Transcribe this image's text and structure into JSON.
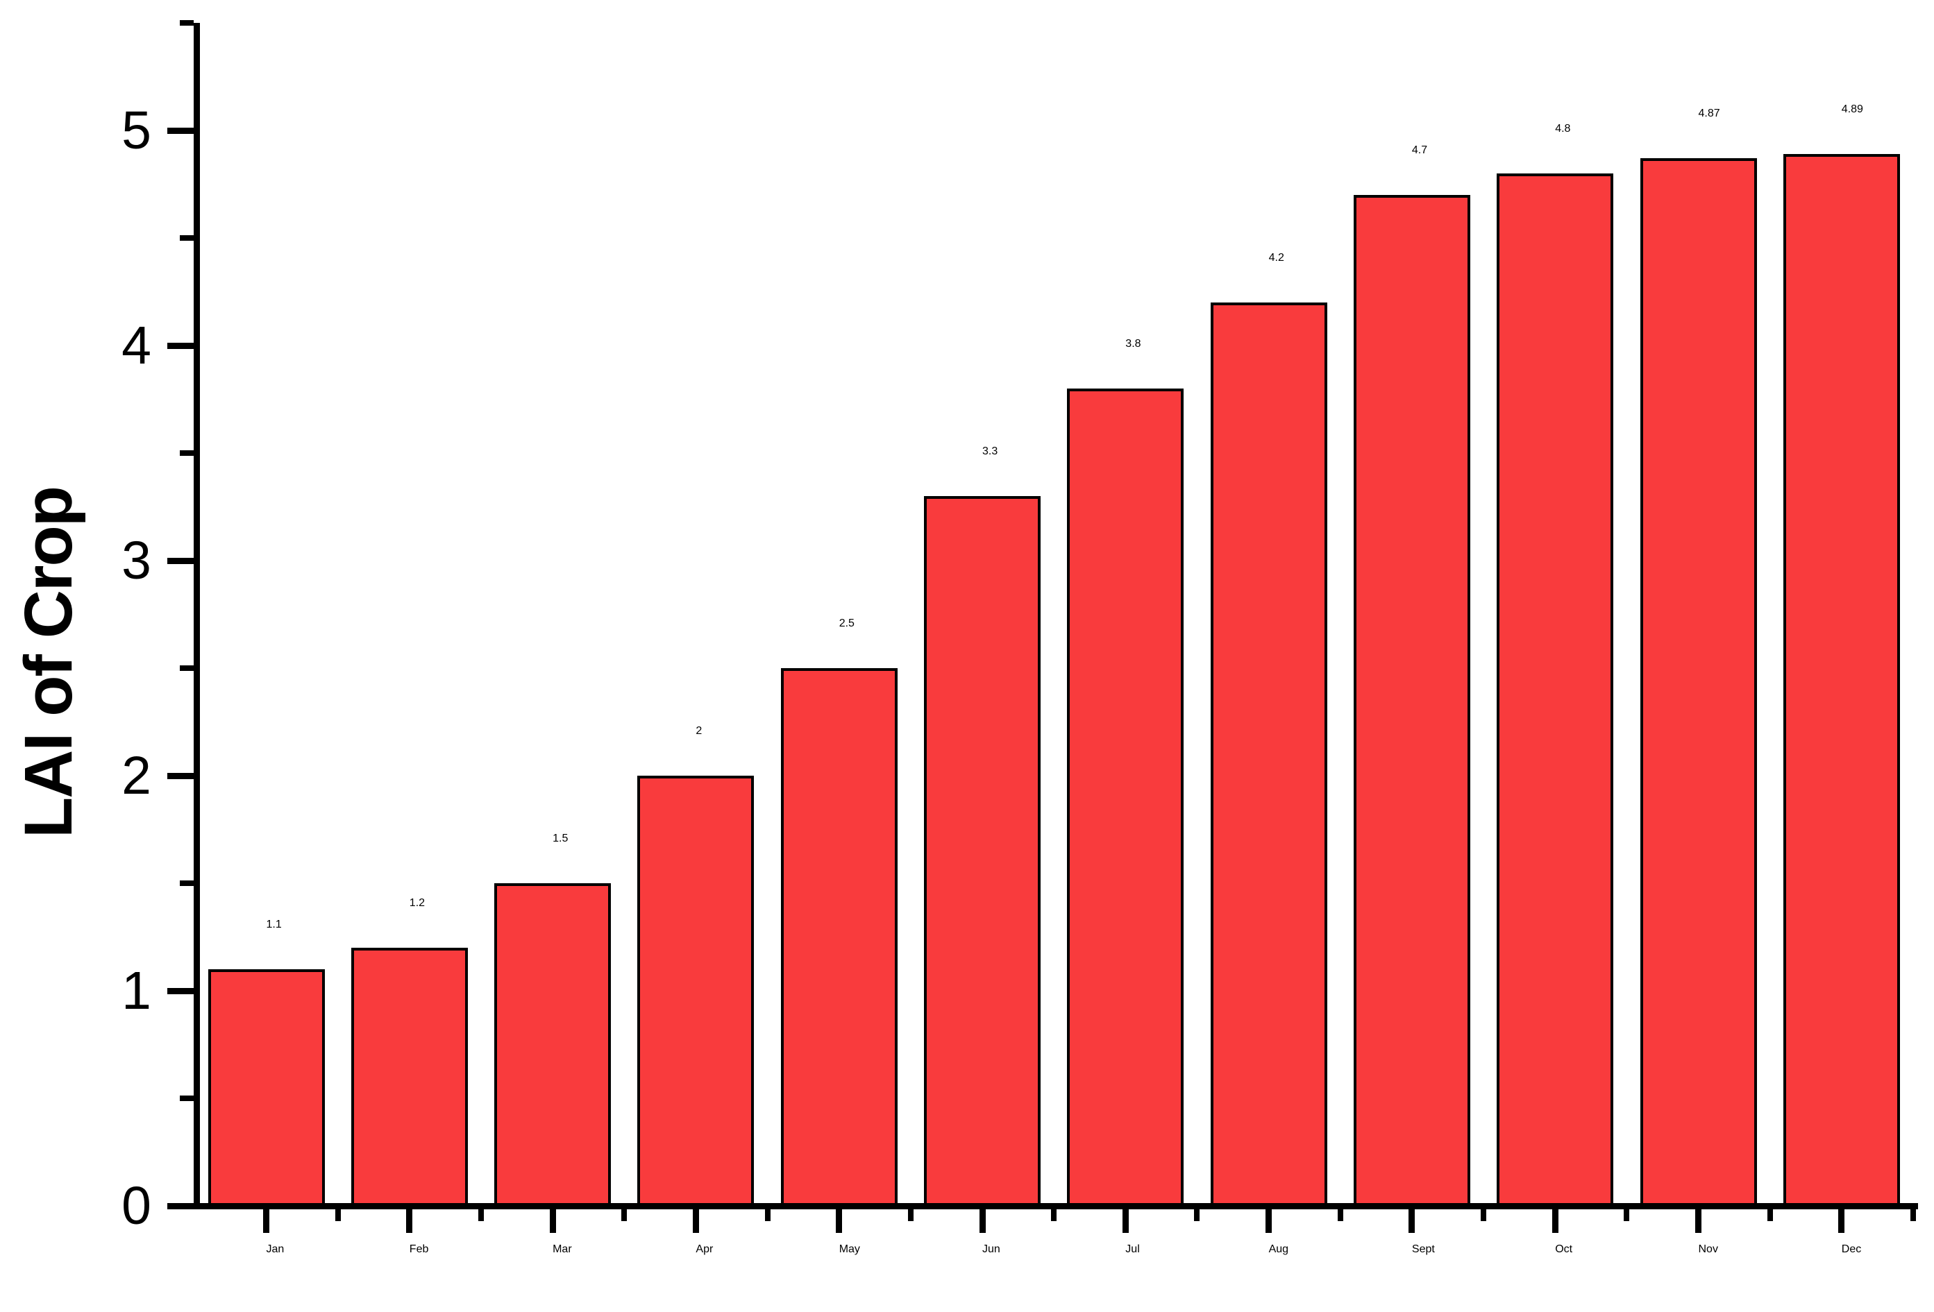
{
  "chart_data": {
    "type": "bar",
    "title": "",
    "xlabel": "",
    "ylabel": "LAI of Crop",
    "categories": [
      "Jan",
      "Feb",
      "Mar",
      "Apr",
      "May",
      "Jun",
      "Jul",
      "Aug",
      "Sept",
      "Oct",
      "Nov",
      "Dec"
    ],
    "values": [
      1.1,
      1.2,
      1.5,
      2,
      2.5,
      3.3,
      3.8,
      4.2,
      4.7,
      4.8,
      4.87,
      4.89
    ],
    "value_labels": [
      "1.1",
      "1.2",
      "1.5",
      "2",
      "2.5",
      "3.3",
      "3.8",
      "4.2",
      "4.7",
      "4.8",
      "4.87",
      "4.89"
    ],
    "ylim": [
      0,
      5.5
    ],
    "yticks": [
      0,
      1,
      2,
      3,
      4,
      5
    ],
    "ytick_labels": [
      "0",
      "1",
      "2",
      "3",
      "4",
      "5"
    ],
    "y_minor_ticks": [
      0.5,
      1.5,
      2.5,
      3.5,
      4.5,
      5.5
    ],
    "grid": false,
    "legend": null,
    "colors": {
      "bar_fill": "#f93b3d",
      "bar_edge": "#000000",
      "axis": "#000000",
      "text": "#000000",
      "background": "#ffffff"
    }
  }
}
